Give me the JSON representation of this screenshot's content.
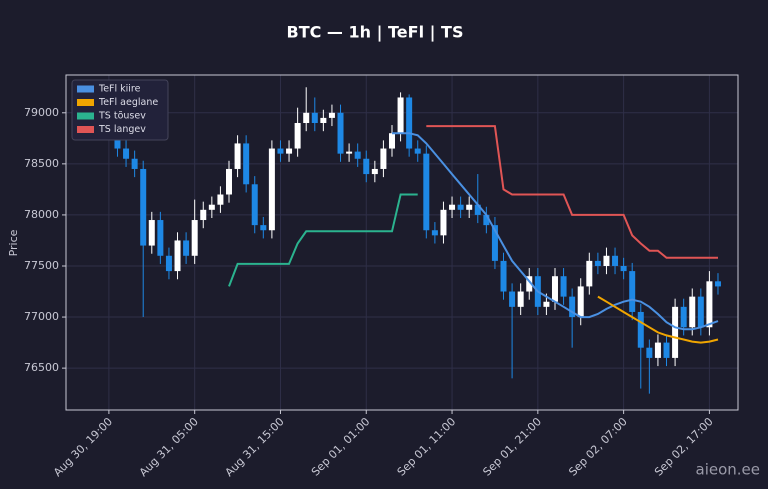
{
  "chart_data": {
    "type": "candlestick",
    "title": "BTC — 1h  |  TeFl  |  TS",
    "y_label": "Price",
    "watermark": "aieon.ee",
    "up_color": "#ffffff",
    "down_color": "#1e88e5",
    "grid": true,
    "legend": "upper left",
    "xlim": [
      "Aug 30, 14:00",
      "Sep 02, 20:20"
    ],
    "xticks": [
      "Aug 30, 19:00",
      "Aug 31, 05:00",
      "Aug 31, 15:00",
      "Sep 01, 01:00",
      "Sep 01, 11:00",
      "Sep 01, 21:00",
      "Sep 02, 07:00",
      "Sep 02, 17:00"
    ],
    "ylim": [
      76090,
      79370
    ],
    "yticks": [
      76500,
      77000,
      77500,
      78000,
      78500,
      79000
    ],
    "x": [
      "Aug 30, 20:00",
      "Aug 30, 21:00",
      "Aug 30, 22:00",
      "Aug 30, 23:00",
      "Aug 31, 00:00",
      "Aug 31, 01:00",
      "Aug 31, 02:00",
      "Aug 31, 03:00",
      "Aug 31, 04:00",
      "Aug 31, 05:00",
      "Aug 31, 06:00",
      "Aug 31, 07:00",
      "Aug 31, 08:00",
      "Aug 31, 09:00",
      "Aug 31, 10:00",
      "Aug 31, 11:00",
      "Aug 31, 12:00",
      "Aug 31, 13:00",
      "Aug 31, 14:00",
      "Aug 31, 15:00",
      "Aug 31, 16:00",
      "Aug 31, 17:00",
      "Aug 31, 18:00",
      "Aug 31, 19:00",
      "Aug 31, 20:00",
      "Aug 31, 21:00",
      "Aug 31, 22:00",
      "Aug 31, 23:00",
      "Sep 01, 00:00",
      "Sep 01, 01:00",
      "Sep 01, 02:00",
      "Sep 01, 03:00",
      "Sep 01, 04:00",
      "Sep 01, 05:00",
      "Sep 01, 06:00",
      "Sep 01, 07:00",
      "Sep 01, 08:00",
      "Sep 01, 09:00",
      "Sep 01, 10:00",
      "Sep 01, 11:00",
      "Sep 01, 12:00",
      "Sep 01, 13:00",
      "Sep 01, 14:00",
      "Sep 01, 15:00",
      "Sep 01, 16:00",
      "Sep 01, 17:00",
      "Sep 01, 18:00",
      "Sep 01, 19:00",
      "Sep 01, 20:00",
      "Sep 01, 21:00",
      "Sep 01, 22:00",
      "Sep 01, 23:00",
      "Sep 02, 00:00",
      "Sep 02, 01:00",
      "Sep 02, 02:00",
      "Sep 02, 03:00",
      "Sep 02, 04:00",
      "Sep 02, 05:00",
      "Sep 02, 06:00",
      "Sep 02, 07:00",
      "Sep 02, 08:00",
      "Sep 02, 09:00",
      "Sep 02, 10:00",
      "Sep 02, 11:00",
      "Sep 02, 12:00",
      "Sep 02, 13:00",
      "Sep 02, 14:00",
      "Sep 02, 15:00",
      "Sep 02, 16:00",
      "Sep 02, 17:00",
      "Sep 02, 18:00"
    ],
    "open": [
      78850,
      78650,
      78550,
      78450,
      77700,
      77950,
      77600,
      77450,
      77750,
      77600,
      77950,
      78050,
      78100,
      78200,
      78450,
      78700,
      78300,
      77900,
      77850,
      78650,
      78600,
      78650,
      78900,
      79000,
      78900,
      78950,
      79000,
      78600,
      78620,
      78550,
      78400,
      78450,
      78650,
      78800,
      79150,
      78650,
      78600,
      77850,
      77800,
      78050,
      78100,
      78050,
      78100,
      78000,
      77900,
      77550,
      77250,
      77100,
      77250,
      77400,
      77100,
      77150,
      77400,
      77200,
      77000,
      77300,
      77550,
      77500,
      77600,
      77500,
      77450,
      77050,
      76700,
      76600,
      76750,
      76600,
      77100,
      76900,
      77200,
      76900,
      77350
    ],
    "high": [
      78950,
      78730,
      78630,
      78530,
      78030,
      78030,
      77680,
      77830,
      77830,
      78150,
      78130,
      78180,
      78280,
      78530,
      78780,
      78780,
      78380,
      77980,
      78730,
      78730,
      78730,
      79050,
      79250,
      79150,
      79030,
      79080,
      79080,
      78700,
      78700,
      78630,
      78530,
      78730,
      78880,
      79200,
      79180,
      78730,
      78680,
      77930,
      78130,
      78180,
      78180,
      78180,
      78400,
      78080,
      77980,
      77630,
      77330,
      77330,
      77480,
      77480,
      77230,
      77480,
      77480,
      77280,
      77380,
      77630,
      77630,
      77680,
      77680,
      77580,
      77530,
      77130,
      76780,
      76830,
      76830,
      77180,
      77180,
      77280,
      77280,
      77450,
      77430
    ],
    "low": [
      78570,
      78470,
      78370,
      77000,
      77620,
      77520,
      77370,
      77370,
      77520,
      77520,
      77870,
      77970,
      78020,
      78120,
      78370,
      78220,
      77820,
      77770,
      77770,
      78520,
      78520,
      78570,
      78820,
      78820,
      78820,
      78870,
      78520,
      78520,
      78470,
      78320,
      78320,
      78370,
      78570,
      78720,
      78570,
      78520,
      77770,
      77720,
      77720,
      77970,
      77970,
      77970,
      77920,
      77820,
      77470,
      77170,
      76400,
      77020,
      77170,
      77020,
      77020,
      77070,
      77120,
      76700,
      76920,
      77220,
      77420,
      77420,
      77420,
      77370,
      76970,
      76300,
      76250,
      76520,
      76520,
      76520,
      76820,
      76820,
      76820,
      76820,
      77220
    ],
    "close": [
      78650,
      78550,
      78450,
      77700,
      77950,
      77600,
      77450,
      77750,
      77600,
      77950,
      78050,
      78100,
      78200,
      78450,
      78700,
      78300,
      77900,
      77850,
      78650,
      78600,
      78650,
      78900,
      79000,
      78900,
      78950,
      79000,
      78600,
      78620,
      78550,
      78400,
      78450,
      78650,
      78800,
      79150,
      78650,
      78600,
      77850,
      77800,
      78050,
      78100,
      78050,
      78100,
      78000,
      77900,
      77550,
      77250,
      77100,
      77250,
      77400,
      77100,
      77150,
      77400,
      77200,
      77000,
      77300,
      77550,
      77500,
      77600,
      77500,
      77450,
      77050,
      76700,
      76600,
      76750,
      76600,
      77100,
      76900,
      77200,
      76900,
      77350,
      77300
    ],
    "series": [
      {
        "name": "TeFl kiire",
        "color": "#4a90e2",
        "values": [
          null,
          null,
          null,
          null,
          null,
          null,
          null,
          null,
          null,
          null,
          null,
          null,
          null,
          null,
          null,
          null,
          null,
          null,
          null,
          null,
          null,
          null,
          null,
          null,
          null,
          null,
          null,
          null,
          null,
          null,
          null,
          null,
          78800,
          78800,
          78800,
          78780,
          78700,
          78600,
          78500,
          78400,
          78300,
          78200,
          78100,
          78000,
          77850,
          77700,
          77550,
          77450,
          77350,
          77250,
          77200,
          77150,
          77100,
          77050,
          77000,
          77000,
          77030,
          77080,
          77120,
          77150,
          77170,
          77150,
          77100,
          77030,
          76950,
          76900,
          76880,
          76880,
          76900,
          76930,
          76960
        ]
      },
      {
        "name": "TeFl aeglane",
        "color": "#f0a500",
        "values": [
          null,
          null,
          null,
          null,
          null,
          null,
          null,
          null,
          null,
          null,
          null,
          null,
          null,
          null,
          null,
          null,
          null,
          null,
          null,
          null,
          null,
          null,
          null,
          null,
          null,
          null,
          null,
          null,
          null,
          null,
          null,
          null,
          null,
          null,
          null,
          null,
          null,
          null,
          null,
          null,
          null,
          null,
          null,
          null,
          null,
          null,
          null,
          null,
          null,
          null,
          null,
          null,
          null,
          null,
          null,
          null,
          77200,
          77150,
          77100,
          77050,
          77000,
          76950,
          76900,
          76850,
          76820,
          76800,
          76780,
          76760,
          76750,
          76760,
          76780
        ]
      },
      {
        "name": "TS tõusev",
        "color": "#2bb38f",
        "values": [
          null,
          null,
          null,
          null,
          null,
          null,
          null,
          null,
          null,
          null,
          null,
          null,
          null,
          77300,
          77520,
          77520,
          77520,
          77520,
          77520,
          77520,
          77520,
          77720,
          77840,
          77840,
          77840,
          77840,
          77840,
          77840,
          77840,
          77840,
          77840,
          77840,
          77840,
          78200,
          78200,
          78200,
          null,
          null,
          null,
          null,
          null,
          null,
          null,
          null,
          null,
          null,
          null,
          null,
          null,
          null,
          null,
          null,
          null,
          null,
          null,
          null,
          null,
          null,
          null,
          null,
          null,
          null,
          null,
          null,
          null,
          null,
          null,
          null,
          null,
          null,
          null
        ]
      },
      {
        "name": "TS langev",
        "color": "#e05555",
        "values": [
          null,
          null,
          null,
          null,
          null,
          null,
          null,
          null,
          null,
          null,
          null,
          null,
          null,
          null,
          null,
          null,
          null,
          null,
          null,
          null,
          null,
          null,
          null,
          null,
          null,
          null,
          null,
          null,
          null,
          null,
          null,
          null,
          null,
          null,
          null,
          null,
          78870,
          78870,
          78870,
          78870,
          78870,
          78870,
          78870,
          78870,
          78870,
          78250,
          78200,
          78200,
          78200,
          78200,
          78200,
          78200,
          78200,
          78000,
          78000,
          78000,
          78000,
          78000,
          78000,
          78000,
          77800,
          77720,
          77650,
          77650,
          77580,
          77580,
          77580,
          77580,
          77580,
          77580,
          77580
        ]
      }
    ]
  }
}
